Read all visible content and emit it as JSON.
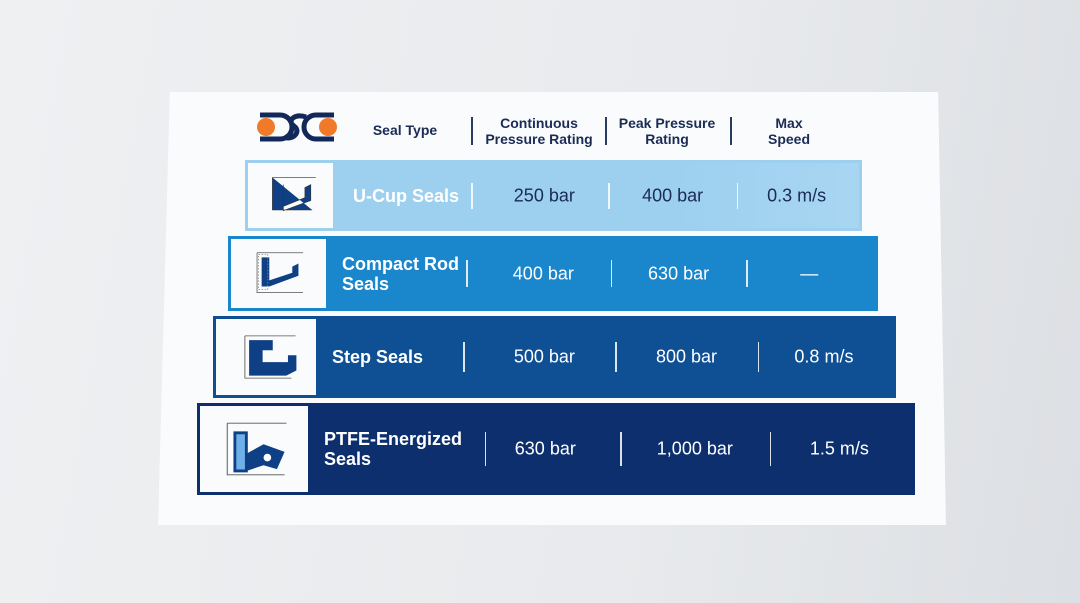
{
  "logo_text": "DSC",
  "header": {
    "seal_type": "Seal Type",
    "continuous": "Continuous Pressure Rating",
    "peak": "Peak Pressure Rating",
    "speed": "Max Speed"
  },
  "rows": [
    {
      "name": "U-Cup Seals",
      "continuous": "250 bar",
      "peak": "400 bar",
      "speed": "0.3 m/s",
      "color": "#9dd0ef",
      "icon": "u-cup-seal-cross-section"
    },
    {
      "name": "Compact Rod Seals",
      "continuous": "400 bar",
      "peak": "630 bar",
      "speed": "—",
      "color": "#1a86cc",
      "icon": "compact-rod-seal-cross-section"
    },
    {
      "name": "Step Seals",
      "continuous": "500 bar",
      "peak": "800 bar",
      "speed": "0.8 m/s",
      "color": "#0f4f94",
      "icon": "step-seal-cross-section"
    },
    {
      "name": "PTFE-Energized Seals",
      "continuous": "630 bar",
      "peak": "1,000 bar",
      "speed": "1.5 m/s",
      "color": "#0d2f6e",
      "icon": "ptfe-energized-seal-cross-section"
    }
  ],
  "colors": {
    "logo_navy": "#13285a",
    "logo_orange": "#f07a2a"
  }
}
